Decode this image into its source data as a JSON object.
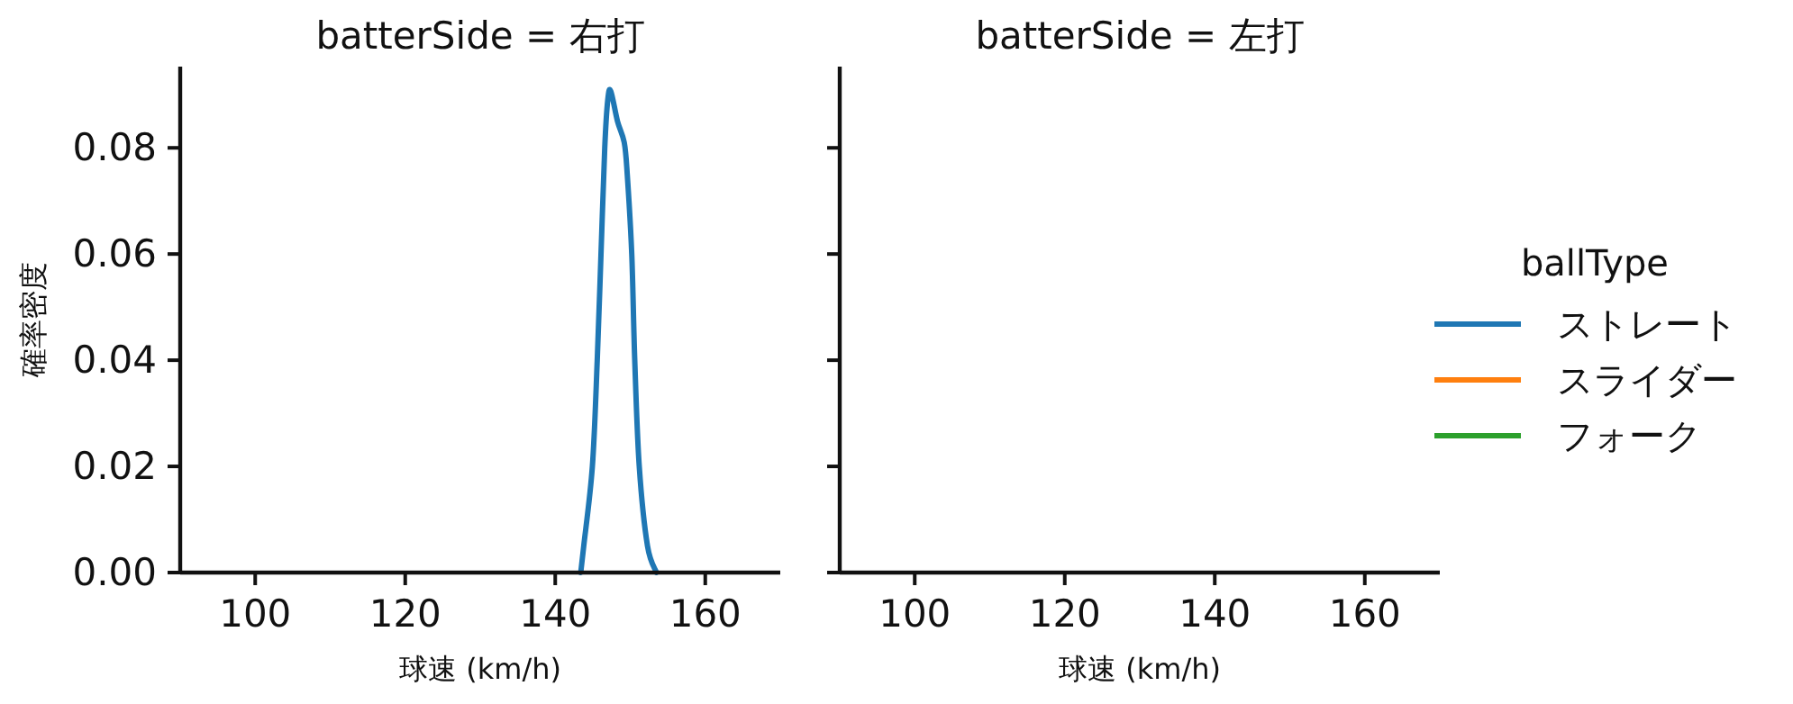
{
  "chart_data": [
    {
      "type": "line",
      "title": "batterSide = 右打",
      "xlabel": "球速 (km/h)",
      "ylabel": "確率密度",
      "xlim": [
        90,
        170
      ],
      "xticks": [
        100,
        120,
        140,
        160
      ],
      "ylim": [
        0,
        0.0953
      ],
      "yticks": [
        {
          "value": 0,
          "label": "0.00"
        },
        0.02,
        0.04,
        0.06,
        0.08
      ],
      "grid": false,
      "legend": "right",
      "legend_title": "ballType",
      "series": [
        {
          "name": "ストレート",
          "color": "#1f77b4",
          "x": [
            143.4,
            143.8,
            144.95,
            145.6,
            146.1,
            146.6,
            147.0,
            147.4,
            148.3,
            149.2,
            149.6,
            150.2,
            150.6,
            151.2,
            152.3,
            153.5
          ],
          "values": [
            0,
            0.005,
            0.02,
            0.04,
            0.06,
            0.08,
            0.089,
            0.0907,
            0.085,
            0.081,
            0.075,
            0.06,
            0.04,
            0.02,
            0.005,
            0
          ]
        },
        {
          "name": "スライダー",
          "color": "#ff7f0e"
        },
        {
          "name": "フォーク",
          "color": "#2ca02c"
        }
      ]
    },
    {
      "type": "line",
      "title": "batterSide = 左打",
      "xlabel": "球速 (km/h)",
      "xlim": [
        90,
        170
      ],
      "xticks": [
        100,
        120,
        140,
        160
      ],
      "ylim": [
        0,
        0.0953
      ],
      "yticks": [
        0,
        0.02,
        0.04,
        0.06,
        0.08
      ],
      "tick_labels": "x",
      "grid": false
    }
  ]
}
